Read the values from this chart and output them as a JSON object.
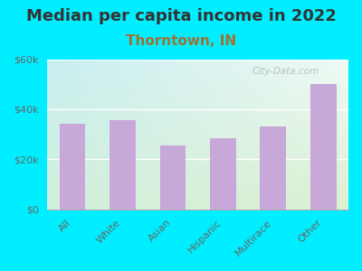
{
  "title": "Median per capita income in 2022",
  "subtitle": "Thorntown, IN",
  "categories": [
    "All",
    "White",
    "Asian",
    "Hispanic",
    "Multirace",
    "Other"
  ],
  "values": [
    34000,
    35500,
    25500,
    28500,
    33000,
    50000
  ],
  "bar_color": "#c8a8d8",
  "background_outer": "#00eeff",
  "ylim": [
    0,
    60000
  ],
  "yticks": [
    0,
    20000,
    40000,
    60000
  ],
  "ytick_labels": [
    "$0",
    "$20k",
    "$40k",
    "$60k"
  ],
  "title_fontsize": 13,
  "subtitle_fontsize": 11,
  "subtitle_color": "#888820",
  "tick_label_color": "#666666",
  "watermark": "City-Data.com",
  "grad_top_left": "#c8eef0",
  "grad_bottom_right": "#d8f0d0"
}
